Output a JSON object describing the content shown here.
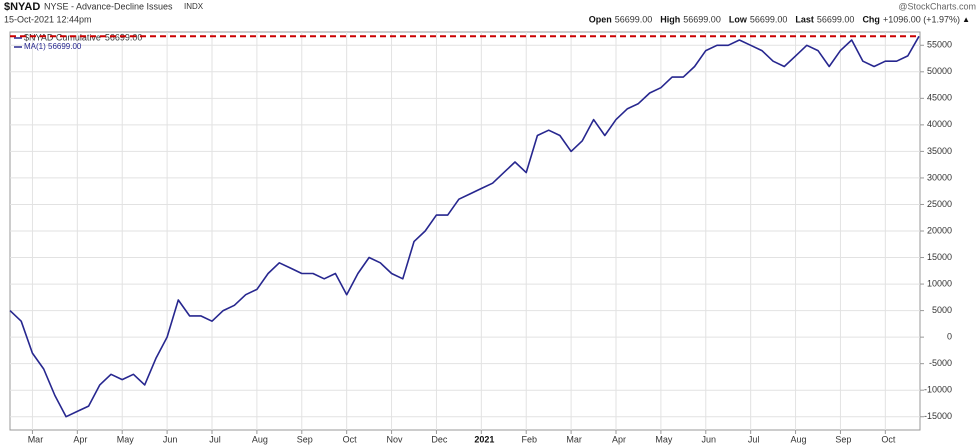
{
  "header": {
    "symbol": "$NYAD",
    "exchange": "NYSE - Advance-Decline Issues",
    "kind": "INDX",
    "datetime": "15-Oct-2021 12:44pm",
    "source": "@StockCharts.com",
    "stats": [
      {
        "label": "Open",
        "value": "56699.00"
      },
      {
        "label": "High",
        "value": "56699.00"
      },
      {
        "label": "Low",
        "value": "56699.00"
      },
      {
        "label": "Last",
        "value": "56699.00"
      },
      {
        "label": "Chg",
        "value": "+1096.00 (+1.97%)"
      }
    ],
    "arrow": "▲"
  },
  "chart_data": {
    "type": "line",
    "categories": [
      null,
      null,
      "Mar",
      null,
      null,
      null,
      "Apr",
      null,
      null,
      null,
      "May",
      null,
      null,
      null,
      "Jun",
      null,
      null,
      null,
      "Jul",
      null,
      null,
      null,
      "Aug",
      null,
      null,
      null,
      "Sep",
      null,
      null,
      null,
      "Oct",
      null,
      null,
      null,
      "Nov",
      null,
      null,
      null,
      "Dec",
      null,
      null,
      null,
      "2021",
      null,
      null,
      null,
      "Feb",
      null,
      null,
      null,
      "Mar",
      null,
      null,
      null,
      "Apr",
      null,
      null,
      null,
      "May",
      null,
      null,
      null,
      "Jun",
      null,
      null,
      null,
      "Jul",
      null,
      null,
      null,
      "Aug",
      null,
      null,
      null,
      "Sep",
      null,
      null,
      null,
      "Oct",
      null,
      null,
      null
    ],
    "series": [
      {
        "name": "$NYAD Cumulative",
        "legend_value": "56699.00",
        "color": "#27278f",
        "values": [
          5000,
          3000,
          -3000,
          -6000,
          -11000,
          -15000,
          -14000,
          -13000,
          -9000,
          -7000,
          -8000,
          -7000,
          -9000,
          -4000,
          0,
          7000,
          4000,
          4000,
          3000,
          5000,
          6000,
          8000,
          9000,
          12000,
          14000,
          13000,
          12000,
          12000,
          11000,
          12000,
          8000,
          12000,
          15000,
          14000,
          12000,
          11000,
          18000,
          20000,
          23000,
          23000,
          26000,
          27000,
          28000,
          29000,
          31000,
          33000,
          31000,
          38000,
          39000,
          38000,
          35000,
          37000,
          41000,
          38000,
          41000,
          43000,
          44000,
          46000,
          47000,
          49000,
          49000,
          51000,
          54000,
          55000,
          55000,
          56000,
          55000,
          54000,
          52000,
          51000,
          53000,
          55000,
          54000,
          51000,
          54000,
          56000,
          52000,
          51000,
          52000,
          52000,
          53000,
          56699
        ]
      }
    ],
    "legend_extra": "MA(1) 56699.00",
    "reference_line": {
      "value": 56699,
      "color": "#cc0000"
    },
    "ylim": [
      -17500,
      57500
    ],
    "yticks": [
      -15000,
      -10000,
      -5000,
      0,
      5000,
      10000,
      15000,
      20000,
      25000,
      30000,
      35000,
      40000,
      45000,
      50000,
      55000
    ],
    "grid": true
  }
}
